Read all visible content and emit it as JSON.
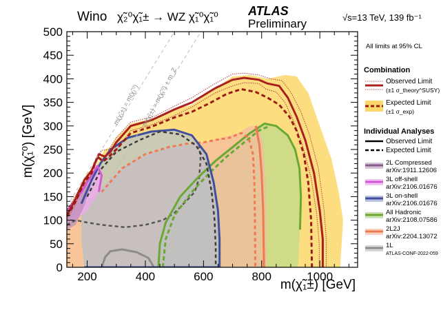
{
  "chart_data": {
    "type": "line",
    "header": {
      "model": "Wino",
      "process": "χ̃₂⁰χ̃₁± → WZ χ̃₁⁰χ̃₁⁰",
      "experiment": "ATLAS",
      "status": "Preliminary",
      "energy": "√s=13 TeV, 139 fb⁻¹"
    },
    "xlabel": "m(χ̃₁±) [GeV]",
    "ylabel": "m(χ̃₁⁰) [GeV]",
    "xlim": [
      130,
      1130
    ],
    "ylim": [
      0,
      500
    ],
    "xticks": [
      200,
      400,
      600,
      800,
      1000
    ],
    "yticks": [
      0,
      50,
      100,
      150,
      200,
      250,
      300,
      350,
      400,
      450,
      500
    ],
    "note": "All limits at 95% CL",
    "diagonal_labels": [
      "m(χ̃₁±) = m(χ̃₁⁰)",
      "m(χ̃₁±) = m(χ̃₁⁰) + m_Z"
    ],
    "legend": {
      "combination_title": "Combination",
      "observed_label": "Observed Limit",
      "observed_sub": "(±1 σ_theory^SUSY)",
      "expected_label": "Expected Limit",
      "expected_sub": "(±1 σ_exp)",
      "individual_title": "Individual Analyses",
      "ind_observed": "Observed Limit",
      "ind_expected": "Expected Limit"
    },
    "analyses": [
      {
        "name": "2L Compressed",
        "ref": "arXiv:1911.12606",
        "color": "#8a5a8a"
      },
      {
        "name": "3L off-shell",
        "ref": "arXiv:2106.01676",
        "color": "#d458d6"
      },
      {
        "name": "3L on-shell",
        "ref": "arXiv:2106.01676",
        "color": "#3f4f9e"
      },
      {
        "name": "All Hadronic",
        "ref": "arXiv:2108.07586",
        "color": "#6aa832"
      },
      {
        "name": "2L2J",
        "ref": "arXiv:2204.13072",
        "color": "#ef7a52"
      },
      {
        "name": "1L",
        "ref": "ATLAS-CONF-2022-059",
        "color": "#8c8c8c"
      }
    ],
    "colors": {
      "combination_band": "#fbd86a",
      "combination_observed": "#a8201e",
      "combination_expected": "#9a1a14"
    },
    "contours": {
      "combined_band": [
        [
          130,
          115
        ],
        [
          170,
          165
        ],
        [
          200,
          200
        ],
        [
          230,
          215
        ],
        [
          260,
          250
        ],
        [
          280,
          255
        ],
        [
          300,
          275
        ],
        [
          350,
          305
        ],
        [
          420,
          315
        ],
        [
          500,
          335
        ],
        [
          560,
          345
        ],
        [
          640,
          380
        ],
        [
          700,
          405
        ],
        [
          760,
          408
        ],
        [
          820,
          400
        ],
        [
          880,
          408
        ],
        [
          920,
          405
        ],
        [
          960,
          370
        ],
        [
          1000,
          300
        ],
        [
          1040,
          230
        ],
        [
          1065,
          160
        ],
        [
          1080,
          100
        ],
        [
          1075,
          50
        ],
        [
          1070,
          0
        ],
        [
          130,
          0
        ]
      ],
      "combined_observed": [
        [
          130,
          110
        ],
        [
          160,
          145
        ],
        [
          190,
          185
        ],
        [
          215,
          205
        ],
        [
          240,
          240
        ],
        [
          260,
          235
        ],
        [
          280,
          245
        ],
        [
          300,
          265
        ],
        [
          350,
          300
        ],
        [
          420,
          312
        ],
        [
          500,
          335
        ],
        [
          560,
          350
        ],
        [
          640,
          380
        ],
        [
          700,
          398
        ],
        [
          740,
          402
        ],
        [
          790,
          398
        ],
        [
          820,
          390
        ],
        [
          860,
          385
        ],
        [
          890,
          360
        ],
        [
          920,
          320
        ],
        [
          950,
          270
        ],
        [
          980,
          200
        ],
        [
          1000,
          120
        ],
        [
          1010,
          60
        ],
        [
          1010,
          0
        ]
      ],
      "combined_observed_up": [
        [
          130,
          120
        ],
        [
          165,
          158
        ],
        [
          200,
          195
        ],
        [
          225,
          212
        ],
        [
          250,
          248
        ],
        [
          275,
          250
        ],
        [
          300,
          275
        ],
        [
          350,
          308
        ],
        [
          430,
          320
        ],
        [
          500,
          342
        ],
        [
          560,
          360
        ],
        [
          640,
          390
        ],
        [
          700,
          410
        ],
        [
          740,
          412
        ],
        [
          790,
          408
        ],
        [
          830,
          400
        ],
        [
          870,
          396
        ],
        [
          900,
          372
        ],
        [
          935,
          330
        ],
        [
          965,
          280
        ],
        [
          995,
          210
        ],
        [
          1015,
          120
        ],
        [
          1022,
          60
        ],
        [
          1022,
          0
        ]
      ],
      "combined_observed_down": [
        [
          130,
          100
        ],
        [
          160,
          135
        ],
        [
          185,
          172
        ],
        [
          210,
          195
        ],
        [
          235,
          232
        ],
        [
          260,
          225
        ],
        [
          285,
          238
        ],
        [
          310,
          258
        ],
        [
          350,
          290
        ],
        [
          420,
          302
        ],
        [
          500,
          322
        ],
        [
          560,
          340
        ],
        [
          640,
          370
        ],
        [
          700,
          385
        ],
        [
          740,
          392
        ],
        [
          790,
          390
        ],
        [
          815,
          378
        ],
        [
          850,
          372
        ],
        [
          880,
          350
        ],
        [
          910,
          310
        ],
        [
          940,
          260
        ],
        [
          970,
          190
        ],
        [
          990,
          110
        ],
        [
          998,
          50
        ],
        [
          998,
          0
        ]
      ],
      "combined_expected": [
        [
          130,
          108
        ],
        [
          160,
          140
        ],
        [
          190,
          180
        ],
        [
          215,
          200
        ],
        [
          235,
          235
        ],
        [
          255,
          225
        ],
        [
          275,
          235
        ],
        [
          300,
          250
        ],
        [
          350,
          285
        ],
        [
          420,
          298
        ],
        [
          500,
          318
        ],
        [
          560,
          330
        ],
        [
          620,
          348
        ],
        [
          680,
          368
        ],
        [
          730,
          378
        ],
        [
          780,
          372
        ],
        [
          820,
          360
        ],
        [
          860,
          345
        ],
        [
          895,
          320
        ],
        [
          920,
          290
        ],
        [
          945,
          240
        ],
        [
          960,
          180
        ],
        [
          970,
          100
        ],
        [
          973,
          0
        ]
      ],
      "2l_compressed_region": [
        [
          130,
          110
        ],
        [
          160,
          140
        ],
        [
          195,
          185
        ],
        [
          210,
          170
        ],
        [
          190,
          130
        ],
        [
          160,
          90
        ],
        [
          130,
          80
        ]
      ],
      "3l_offshell_region": [
        [
          130,
          120
        ],
        [
          180,
          160
        ],
        [
          210,
          190
        ],
        [
          235,
          215
        ],
        [
          250,
          195
        ],
        [
          240,
          160
        ],
        [
          200,
          120
        ],
        [
          160,
          100
        ],
        [
          130,
          95
        ]
      ],
      "3l_onshell_region": [
        [
          180,
          135
        ],
        [
          215,
          185
        ],
        [
          245,
          220
        ],
        [
          280,
          250
        ],
        [
          340,
          275
        ],
        [
          420,
          288
        ],
        [
          500,
          292
        ],
        [
          560,
          280
        ],
        [
          610,
          240
        ],
        [
          635,
          180
        ],
        [
          650,
          120
        ],
        [
          655,
          60
        ],
        [
          655,
          0
        ],
        [
          190,
          0
        ],
        [
          180,
          60
        ]
      ],
      "3l_onshell_expected": [
        [
          200,
          150
        ],
        [
          250,
          210
        ],
        [
          300,
          245
        ],
        [
          380,
          270
        ],
        [
          450,
          288
        ],
        [
          520,
          282
        ],
        [
          575,
          258
        ],
        [
          610,
          220
        ],
        [
          628,
          160
        ],
        [
          638,
          100
        ],
        [
          642,
          40
        ],
        [
          642,
          0
        ]
      ],
      "2l2j_region": [
        [
          130,
          0
        ],
        [
          130,
          100
        ],
        [
          180,
          130
        ],
        [
          250,
          170
        ],
        [
          340,
          220
        ],
        [
          430,
          245
        ],
        [
          520,
          258
        ],
        [
          600,
          265
        ],
        [
          660,
          275
        ],
        [
          720,
          285
        ],
        [
          760,
          300
        ],
        [
          790,
          300
        ],
        [
          805,
          260
        ],
        [
          812,
          200
        ],
        [
          815,
          120
        ],
        [
          818,
          0
        ]
      ],
      "2l2j_expected": [
        [
          250,
          160
        ],
        [
          320,
          210
        ],
        [
          400,
          240
        ],
        [
          480,
          255
        ],
        [
          540,
          262
        ],
        [
          600,
          265
        ],
        [
          640,
          270
        ],
        [
          690,
          275
        ],
        [
          730,
          285
        ],
        [
          755,
          275
        ],
        [
          770,
          240
        ],
        [
          775,
          180
        ],
        [
          777,
          100
        ],
        [
          778,
          0
        ]
      ],
      "hadronic_region": [
        [
          445,
          0
        ],
        [
          450,
          50
        ],
        [
          470,
          95
        ],
        [
          520,
          150
        ],
        [
          580,
          190
        ],
        [
          640,
          225
        ],
        [
          700,
          255
        ],
        [
          760,
          285
        ],
        [
          810,
          305
        ],
        [
          850,
          300
        ],
        [
          890,
          280
        ],
        [
          915,
          250
        ],
        [
          930,
          210
        ],
        [
          935,
          150
        ],
        [
          932,
          80
        ],
        [
          925,
          0
        ]
      ],
      "hadronic_expected": [
        [
          460,
          0
        ],
        [
          470,
          60
        ],
        [
          500,
          110
        ],
        [
          560,
          160
        ],
        [
          620,
          200
        ],
        [
          680,
          235
        ],
        [
          740,
          265
        ],
        [
          790,
          290
        ],
        [
          820,
          298
        ]
      ],
      "2l2j_observed": [
        [
          780,
          300
        ],
        [
          792,
          260
        ],
        [
          800,
          200
        ],
        [
          805,
          120
        ],
        [
          808,
          0
        ]
      ],
      "2l_compressed_expected": [
        [
          130,
          90
        ],
        [
          160,
          100
        ],
        [
          200,
          95
        ],
        [
          250,
          90
        ],
        [
          330,
          85
        ],
        [
          400,
          90
        ],
        [
          460,
          100
        ],
        [
          500,
          115
        ],
        [
          540,
          140
        ],
        [
          570,
          160
        ],
        [
          585,
          190
        ],
        [
          590,
          230
        ],
        [
          585,
          260
        ]
      ],
      "1l_observed": [
        [
          250,
          0
        ],
        [
          262,
          22
        ],
        [
          280,
          34
        ],
        [
          320,
          38
        ],
        [
          370,
          32
        ],
        [
          410,
          20
        ],
        [
          430,
          0
        ]
      ]
    }
  }
}
